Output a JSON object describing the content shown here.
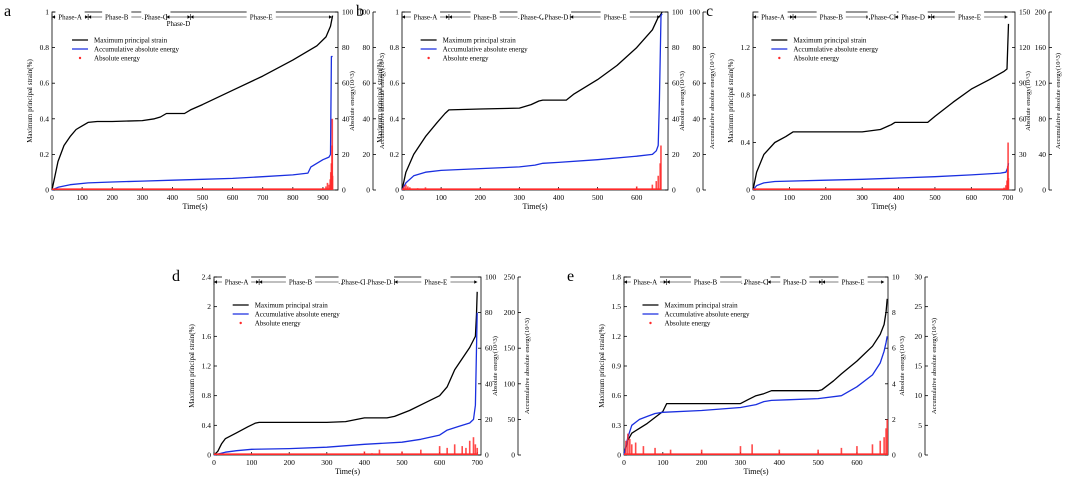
{
  "figure": {
    "colors": {
      "strain": "#000000",
      "accum": "#1a2fe0",
      "abs": "#ff2a2a"
    },
    "legend_labels": [
      "Maximum principal strain",
      "Accumulative absolute energy",
      "Absolute energy"
    ],
    "xlabel": "Time(s)",
    "ylabel_left": "Maximum principal strain(%)",
    "ylabel_abs": "Absolute energy(10^3)",
    "ylabel_accum": "Accumulative absolute energy(10^3)"
  },
  "chart_data": [
    {
      "panel_label": "a",
      "type": "line",
      "title": "",
      "xlabel": "Time(s)",
      "ylabel": "Maximum principal strain(%)",
      "xlim": [
        0,
        950
      ],
      "xticks": [
        0,
        100,
        200,
        300,
        400,
        500,
        600,
        700,
        800,
        900
      ],
      "ylim_left": [
        0,
        1.0
      ],
      "yticks_left": [
        0.0,
        0.2,
        0.4,
        0.6,
        0.8,
        1.0
      ],
      "ylim_abs": [
        0,
        100
      ],
      "yticks_abs": [
        0,
        20,
        40,
        60,
        80,
        100
      ],
      "ylim_accum": [
        0,
        100
      ],
      "yticks_accum": [
        0,
        20,
        40,
        60,
        80,
        100
      ],
      "phases": [
        {
          "name": "Phase-A",
          "start": 0,
          "end": 120
        },
        {
          "name": "Phase-B",
          "start": 120,
          "end": 310
        },
        {
          "name": "Phase-C",
          "start": 310,
          "end": 380
        },
        {
          "name": "Phase-D",
          "start": 380,
          "end": 460
        },
        {
          "name": "Phase-E",
          "start": 460,
          "end": 930
        }
      ],
      "phase_label_rows": [
        0,
        0,
        0,
        1,
        0
      ],
      "series": [
        {
          "name": "Maximum principal strain",
          "axis": "left",
          "x": [
            0,
            10,
            20,
            40,
            60,
            80,
            100,
            120,
            150,
            200,
            300,
            340,
            360,
            380,
            440,
            460,
            500,
            600,
            700,
            800,
            880,
            910,
            925,
            932
          ],
          "y": [
            0,
            0.08,
            0.16,
            0.25,
            0.3,
            0.34,
            0.36,
            0.38,
            0.385,
            0.385,
            0.39,
            0.4,
            0.41,
            0.43,
            0.43,
            0.45,
            0.48,
            0.56,
            0.64,
            0.73,
            0.81,
            0.86,
            0.92,
            0.98
          ]
        },
        {
          "name": "Accumulative absolute energy",
          "axis": "accum",
          "x": [
            0,
            20,
            60,
            120,
            200,
            300,
            400,
            500,
            600,
            700,
            800,
            850,
            860,
            880,
            900,
            920,
            925,
            928,
            932
          ],
          "y": [
            0,
            1.5,
            3,
            4,
            4.5,
            5,
            5.5,
            6,
            6.5,
            7.5,
            8.5,
            9.5,
            13,
            15,
            17,
            18.5,
            20,
            75,
            75
          ]
        },
        {
          "name": "Absolute energy",
          "axis": "abs",
          "x": [
            900,
            910,
            915,
            920,
            924,
            926,
            928,
            930,
            931,
            932
          ],
          "y": [
            1,
            2,
            4,
            3,
            6,
            10,
            15,
            25,
            40,
            8
          ]
        }
      ]
    },
    {
      "panel_label": "b",
      "type": "line",
      "title": "",
      "xlabel": "Time(s)",
      "ylabel": "Maximum principal strain(%)",
      "xlim": [
        0,
        680
      ],
      "xticks": [
        0,
        100,
        200,
        300,
        400,
        500,
        600
      ],
      "ylim_left": [
        0,
        1.0
      ],
      "yticks_left": [
        0.0,
        0.2,
        0.4,
        0.6,
        0.8,
        1.0
      ],
      "ylim_abs": [
        0,
        100
      ],
      "yticks_abs": [
        0,
        20,
        40,
        60,
        80,
        100
      ],
      "ylim_accum": [
        0,
        100
      ],
      "yticks_accum": [
        0,
        20,
        40,
        60,
        80,
        100
      ],
      "phases": [
        {
          "name": "Phase-A",
          "start": 0,
          "end": 120
        },
        {
          "name": "Phase-B",
          "start": 120,
          "end": 305
        },
        {
          "name": "Phase-C",
          "start": 305,
          "end": 360
        },
        {
          "name": "Phase-D",
          "start": 360,
          "end": 430
        },
        {
          "name": "Phase-E",
          "start": 430,
          "end": 660
        }
      ],
      "phase_label_rows": [
        0,
        0,
        0,
        0,
        0
      ],
      "series": [
        {
          "name": "Maximum principal strain",
          "axis": "left",
          "x": [
            0,
            10,
            30,
            60,
            90,
            110,
            120,
            200,
            300,
            330,
            350,
            360,
            420,
            440,
            500,
            550,
            600,
            640,
            655,
            660,
            665
          ],
          "y": [
            0,
            0.1,
            0.2,
            0.3,
            0.38,
            0.43,
            0.45,
            0.455,
            0.46,
            0.48,
            0.5,
            0.505,
            0.505,
            0.54,
            0.62,
            0.7,
            0.8,
            0.9,
            0.97,
            0.98,
            1.0
          ]
        },
        {
          "name": "Accumulative absolute energy",
          "axis": "accum",
          "x": [
            0,
            10,
            30,
            60,
            100,
            200,
            300,
            340,
            360,
            400,
            500,
            600,
            640,
            650,
            655,
            658,
            662,
            665
          ],
          "y": [
            0,
            4,
            8,
            10,
            11,
            12,
            13,
            14,
            15,
            15.5,
            17,
            19,
            20,
            22,
            25,
            50,
            98,
            99
          ]
        },
        {
          "name": "Absolute energy",
          "axis": "abs",
          "x": [
            5,
            10,
            15,
            20,
            40,
            60,
            100,
            200,
            300,
            400,
            500,
            600,
            640,
            650,
            655,
            660,
            662
          ],
          "y": [
            2,
            3,
            2,
            1.5,
            1,
            1.5,
            1,
            1,
            1,
            1,
            1,
            2,
            3,
            5,
            8,
            15,
            25
          ]
        }
      ]
    },
    {
      "panel_label": "c",
      "type": "line",
      "title": "",
      "xlabel": "Time(s)",
      "ylabel": "Maximum principal strain(%)",
      "xlim": [
        0,
        720
      ],
      "xticks": [
        0,
        100,
        200,
        300,
        400,
        500,
        600,
        700
      ],
      "ylim_left": [
        0,
        1.5
      ],
      "yticks_left": [
        0.0,
        0.4,
        0.8,
        1.2
      ],
      "ylim_abs": [
        0,
        150
      ],
      "yticks_abs": [
        0,
        30,
        60,
        90,
        120,
        150
      ],
      "ylim_accum": [
        0,
        200
      ],
      "yticks_accum": [
        0,
        40,
        80,
        120,
        160,
        200
      ],
      "phases": [
        {
          "name": "Phase-A",
          "start": 0,
          "end": 110
        },
        {
          "name": "Phase-B",
          "start": 110,
          "end": 320
        },
        {
          "name": "Phase-C",
          "start": 320,
          "end": 390
        },
        {
          "name": "Phase-D",
          "start": 390,
          "end": 490
        },
        {
          "name": "Phase-E",
          "start": 490,
          "end": 700
        }
      ],
      "phase_label_rows": [
        0,
        0,
        0,
        0,
        0
      ],
      "series": [
        {
          "name": "Maximum principal strain",
          "axis": "left",
          "x": [
            0,
            10,
            30,
            60,
            90,
            110,
            200,
            300,
            350,
            380,
            390,
            480,
            500,
            550,
            600,
            650,
            690,
            698,
            700,
            702
          ],
          "y": [
            0,
            0.15,
            0.3,
            0.4,
            0.45,
            0.49,
            0.49,
            0.49,
            0.51,
            0.55,
            0.57,
            0.57,
            0.62,
            0.74,
            0.85,
            0.93,
            1.0,
            1.02,
            1.2,
            1.4
          ]
        },
        {
          "name": "Accumulative absolute energy",
          "axis": "accum",
          "x": [
            0,
            10,
            30,
            60,
            100,
            200,
            300,
            400,
            500,
            600,
            680,
            695,
            700,
            702
          ],
          "y": [
            0,
            5,
            8,
            9.5,
            10,
            11,
            12,
            13.5,
            15,
            17,
            19,
            20,
            25,
            30
          ]
        },
        {
          "name": "Absolute energy",
          "axis": "abs",
          "x": [
            680,
            690,
            695,
            698,
            700,
            701,
            702
          ],
          "y": [
            1,
            2,
            4,
            8,
            20,
            40,
            10
          ]
        }
      ]
    },
    {
      "panel_label": "d",
      "type": "line",
      "title": "",
      "xlabel": "Time(s)",
      "ylabel": "Maximum principal strain(%)",
      "xlim": [
        0,
        710
      ],
      "xticks": [
        0,
        100,
        200,
        300,
        400,
        500,
        600,
        700
      ],
      "ylim_left": [
        0,
        2.4
      ],
      "yticks_left": [
        0.0,
        0.4,
        0.8,
        1.2,
        1.6,
        2.0,
        2.4
      ],
      "ylim_abs": [
        0,
        100
      ],
      "yticks_abs": [
        0,
        20,
        40,
        60,
        80,
        100
      ],
      "ylim_accum": [
        0,
        250
      ],
      "yticks_accum": [
        0,
        50,
        100,
        150,
        200,
        250
      ],
      "phases": [
        {
          "name": "Phase-A",
          "start": 0,
          "end": 120
        },
        {
          "name": "Phase-B",
          "start": 120,
          "end": 340
        },
        {
          "name": "Phase-C",
          "start": 340,
          "end": 400
        },
        {
          "name": "Phase-D",
          "start": 400,
          "end": 480
        },
        {
          "name": "Phase-E",
          "start": 480,
          "end": 700
        }
      ],
      "phase_label_rows": [
        0,
        0,
        0,
        0,
        0
      ],
      "series": [
        {
          "name": "Maximum principal strain",
          "axis": "left",
          "x": [
            0,
            10,
            20,
            30,
            60,
            90,
            110,
            120,
            200,
            300,
            350,
            380,
            400,
            460,
            480,
            520,
            560,
            600,
            620,
            640,
            660,
            680,
            690,
            695,
            698,
            700
          ],
          "y": [
            0,
            0.05,
            0.15,
            0.22,
            0.3,
            0.38,
            0.43,
            0.44,
            0.44,
            0.44,
            0.45,
            0.48,
            0.5,
            0.5,
            0.52,
            0.6,
            0.7,
            0.8,
            0.92,
            1.15,
            1.3,
            1.45,
            1.55,
            1.6,
            1.9,
            2.2
          ]
        },
        {
          "name": "Accumulative absolute energy",
          "axis": "accum",
          "x": [
            0,
            30,
            60,
            100,
            200,
            300,
            400,
            500,
            550,
            600,
            620,
            650,
            680,
            690,
            695,
            698,
            700
          ],
          "y": [
            0,
            4,
            6,
            8,
            9,
            11,
            15,
            18,
            22,
            28,
            35,
            40,
            45,
            50,
            70,
            150,
            200
          ]
        },
        {
          "name": "Absolute energy",
          "axis": "abs",
          "x": [
            400,
            420,
            440,
            500,
            550,
            600,
            620,
            640,
            660,
            670,
            680,
            690,
            695,
            700
          ],
          "y": [
            2,
            1,
            3,
            2,
            3,
            5,
            4,
            6,
            5,
            4,
            8,
            10,
            6,
            4
          ]
        }
      ]
    },
    {
      "panel_label": "e",
      "type": "line",
      "title": "",
      "xlabel": "Time(s)",
      "ylabel": "Maximum principal strain(%)",
      "xlim": [
        0,
        680
      ],
      "xticks": [
        0,
        100,
        200,
        300,
        400,
        500,
        600
      ],
      "ylim_left": [
        0,
        1.8
      ],
      "yticks_left": [
        0.0,
        0.3,
        0.6,
        0.9,
        1.2,
        1.5,
        1.8
      ],
      "ylim_abs": [
        0,
        10
      ],
      "yticks_abs": [
        0,
        2,
        4,
        6,
        8,
        10
      ],
      "ylim_accum": [
        0,
        30
      ],
      "yticks_accum": [
        0,
        5,
        10,
        15,
        20,
        25,
        30
      ],
      "phases": [
        {
          "name": "Phase-A",
          "start": 0,
          "end": 110
        },
        {
          "name": "Phase-B",
          "start": 110,
          "end": 310
        },
        {
          "name": "Phase-C",
          "start": 310,
          "end": 370
        },
        {
          "name": "Phase-D",
          "start": 370,
          "end": 510
        },
        {
          "name": "Phase-E",
          "start": 510,
          "end": 670
        }
      ],
      "phase_label_rows": [
        0,
        0,
        0,
        0,
        0
      ],
      "series": [
        {
          "name": "Maximum principal strain",
          "axis": "left",
          "x": [
            0,
            10,
            20,
            40,
            60,
            80,
            100,
            110,
            200,
            300,
            320,
            340,
            360,
            380,
            420,
            500,
            510,
            540,
            560,
            600,
            640,
            660,
            670,
            675,
            678
          ],
          "y": [
            0,
            0.15,
            0.22,
            0.27,
            0.32,
            0.38,
            0.44,
            0.52,
            0.52,
            0.52,
            0.56,
            0.6,
            0.62,
            0.65,
            0.65,
            0.65,
            0.66,
            0.75,
            0.82,
            0.95,
            1.1,
            1.22,
            1.32,
            1.45,
            1.58
          ]
        },
        {
          "name": "Accumulative absolute energy",
          "axis": "accum",
          "x": [
            0,
            10,
            20,
            40,
            60,
            80,
            100,
            200,
            300,
            340,
            360,
            380,
            420,
            500,
            560,
            600,
            640,
            660,
            670,
            675,
            678
          ],
          "y": [
            0,
            3,
            5,
            6,
            6.5,
            7,
            7.2,
            7.5,
            8,
            8.5,
            9,
            9.2,
            9.3,
            9.5,
            10,
            11.5,
            13.5,
            15.5,
            17.5,
            19,
            20
          ]
        },
        {
          "name": "Absolute energy",
          "axis": "abs",
          "x": [
            5,
            10,
            15,
            20,
            30,
            50,
            80,
            120,
            200,
            300,
            330,
            400,
            500,
            560,
            600,
            640,
            660,
            670,
            675,
            678
          ],
          "y": [
            0.8,
            1.2,
            0.9,
            0.6,
            0.7,
            0.5,
            0.4,
            0.3,
            0.3,
            0.5,
            0.6,
            0.3,
            0.3,
            0.4,
            0.5,
            0.6,
            0.8,
            1.0,
            1.5,
            2.0
          ]
        }
      ]
    }
  ]
}
